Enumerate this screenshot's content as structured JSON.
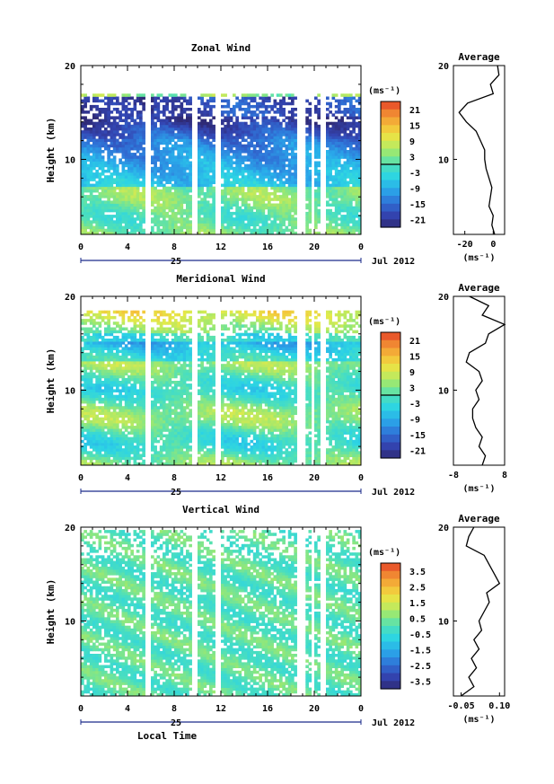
{
  "figure": {
    "date_label": "Jul 2012",
    "day_label": "25",
    "xlabel": "Local Time"
  },
  "chart_data": [
    {
      "type": "heatmap",
      "title": "Zonal Wind",
      "ylabel": "Height (km)",
      "x_ticks": [
        "0",
        "4",
        "8",
        "12",
        "16",
        "20",
        "0"
      ],
      "y_ticks": [
        "10",
        "20"
      ],
      "xlim": [
        0,
        24
      ],
      "ylim": [
        2,
        20
      ],
      "unit": "(ms⁻¹)",
      "colorbar": {
        "ticks": [
          "21",
          "15",
          "9",
          "3",
          "-3",
          "-9",
          "-15",
          "-21"
        ],
        "range": [
          -24,
          24
        ]
      },
      "profile": {
        "title": "Average",
        "x_ticks": [
          "-20",
          "0"
        ],
        "xlim": [
          -28,
          8
        ],
        "unit": "(ms⁻¹)",
        "heights": [
          2,
          3,
          4,
          5,
          6,
          7,
          8,
          9,
          10,
          11,
          12,
          13,
          14,
          15,
          16,
          17,
          18,
          19,
          20
        ],
        "values": [
          1,
          -1,
          0,
          -3,
          -2,
          -1,
          -3,
          -5,
          -6,
          -6,
          -9,
          -12,
          -19,
          -24,
          -18,
          0,
          -2,
          4,
          3
        ]
      }
    },
    {
      "type": "heatmap",
      "title": "Meridional Wind",
      "ylabel": "Height (km)",
      "x_ticks": [
        "0",
        "4",
        "8",
        "12",
        "16",
        "20",
        "0"
      ],
      "y_ticks": [
        "10",
        "20"
      ],
      "xlim": [
        0,
        24
      ],
      "ylim": [
        2,
        20
      ],
      "unit": "(ms⁻¹)",
      "colorbar": {
        "ticks": [
          "21",
          "15",
          "9",
          "3",
          "-3",
          "-9",
          "-15",
          "-21"
        ],
        "range": [
          -24,
          24
        ]
      },
      "profile": {
        "title": "Average",
        "x_ticks": [
          "-8",
          "8"
        ],
        "xlim": [
          -8,
          8
        ],
        "unit": "(ms⁻¹)",
        "heights": [
          2,
          3,
          4,
          5,
          6,
          7,
          8,
          9,
          10,
          11,
          12,
          13,
          14,
          15,
          16,
          17,
          18,
          19,
          20
        ],
        "values": [
          1,
          2,
          0,
          1,
          -1,
          -2,
          -2,
          0,
          -1,
          1,
          0,
          -4,
          -3,
          2,
          3,
          8,
          1,
          3,
          -3
        ]
      }
    },
    {
      "type": "heatmap",
      "title": "Vertical Wind",
      "ylabel": "Height (km)",
      "x_ticks": [
        "0",
        "4",
        "8",
        "12",
        "16",
        "20",
        "0"
      ],
      "y_ticks": [
        "10",
        "20"
      ],
      "xlim": [
        0,
        24
      ],
      "ylim": [
        2,
        20
      ],
      "unit": "(ms⁻¹)",
      "colorbar": {
        "ticks": [
          "3.5",
          "2.5",
          "1.5",
          "0.5",
          "-0.5",
          "-1.5",
          "-2.5",
          "-3.5"
        ],
        "range": [
          -4,
          4
        ]
      },
      "profile": {
        "title": "Average",
        "x_ticks": [
          "-0.05",
          "0.10"
        ],
        "xlim": [
          -0.08,
          0.12
        ],
        "unit": "(ms⁻¹)",
        "heights": [
          2,
          3,
          4,
          5,
          6,
          7,
          8,
          9,
          10,
          11,
          12,
          13,
          14,
          15,
          16,
          17,
          18,
          19,
          20
        ],
        "values": [
          -0.05,
          0.0,
          -0.02,
          0.01,
          -0.01,
          0.02,
          0.0,
          0.03,
          0.02,
          0.04,
          0.06,
          0.05,
          0.1,
          0.08,
          0.06,
          0.04,
          -0.03,
          -0.02,
          0.0
        ]
      }
    }
  ]
}
